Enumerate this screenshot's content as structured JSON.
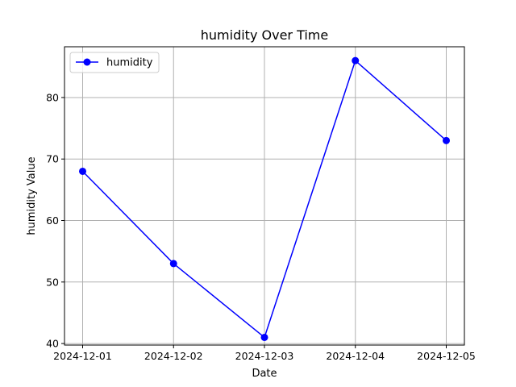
{
  "chart_data": {
    "type": "line",
    "title": "humidity Over Time",
    "xlabel": "Date",
    "ylabel": "humidity Value",
    "categories": [
      "2024-12-01",
      "2024-12-02",
      "2024-12-03",
      "2024-12-04",
      "2024-12-05"
    ],
    "series": [
      {
        "name": "humidity",
        "values": [
          68,
          53,
          41,
          86,
          73
        ],
        "color": "#0000ff",
        "marker": "circle"
      }
    ],
    "yticks": [
      40,
      50,
      60,
      70,
      80
    ],
    "ylim": [
      39.75,
      88.25
    ],
    "grid": true,
    "legend_position": "top-left"
  }
}
